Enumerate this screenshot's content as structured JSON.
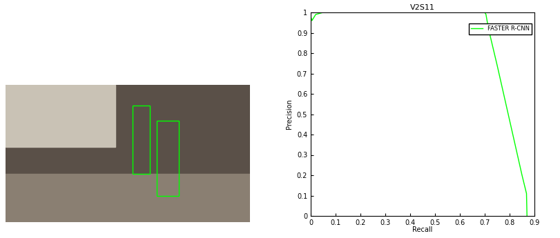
{
  "chart_data": {
    "type": "line",
    "title": "V2S11",
    "x_label": "Recall",
    "y_label": "Precision",
    "series": [
      {
        "name": "FASTER R-CNN",
        "color": "#00ff00",
        "x": [
          0,
          0.005,
          0.02,
          0.05,
          0.2,
          0.4,
          0.6,
          0.7,
          0.705,
          0.715,
          0.75,
          0.8,
          0.85,
          0.868,
          0.87
        ],
        "values": [
          0.98,
          0.96,
          0.99,
          1.0,
          1.0,
          1.0,
          1.0,
          1.0,
          0.99,
          0.92,
          0.74,
          0.47,
          0.2,
          0.11,
          0.0
        ]
      }
    ],
    "xlim": [
      0,
      0.9
    ],
    "xticks": [
      0,
      0.1,
      0.2,
      0.3,
      0.4,
      0.5,
      0.6,
      0.7,
      0.8,
      0.9
    ],
    "ylim": [
      0,
      1
    ],
    "yticks": [
      0,
      0.1,
      0.2,
      0.3,
      0.4,
      0.5,
      0.6,
      0.7,
      0.8,
      0.9,
      1
    ],
    "legend": "upper right",
    "grid": false
  }
}
